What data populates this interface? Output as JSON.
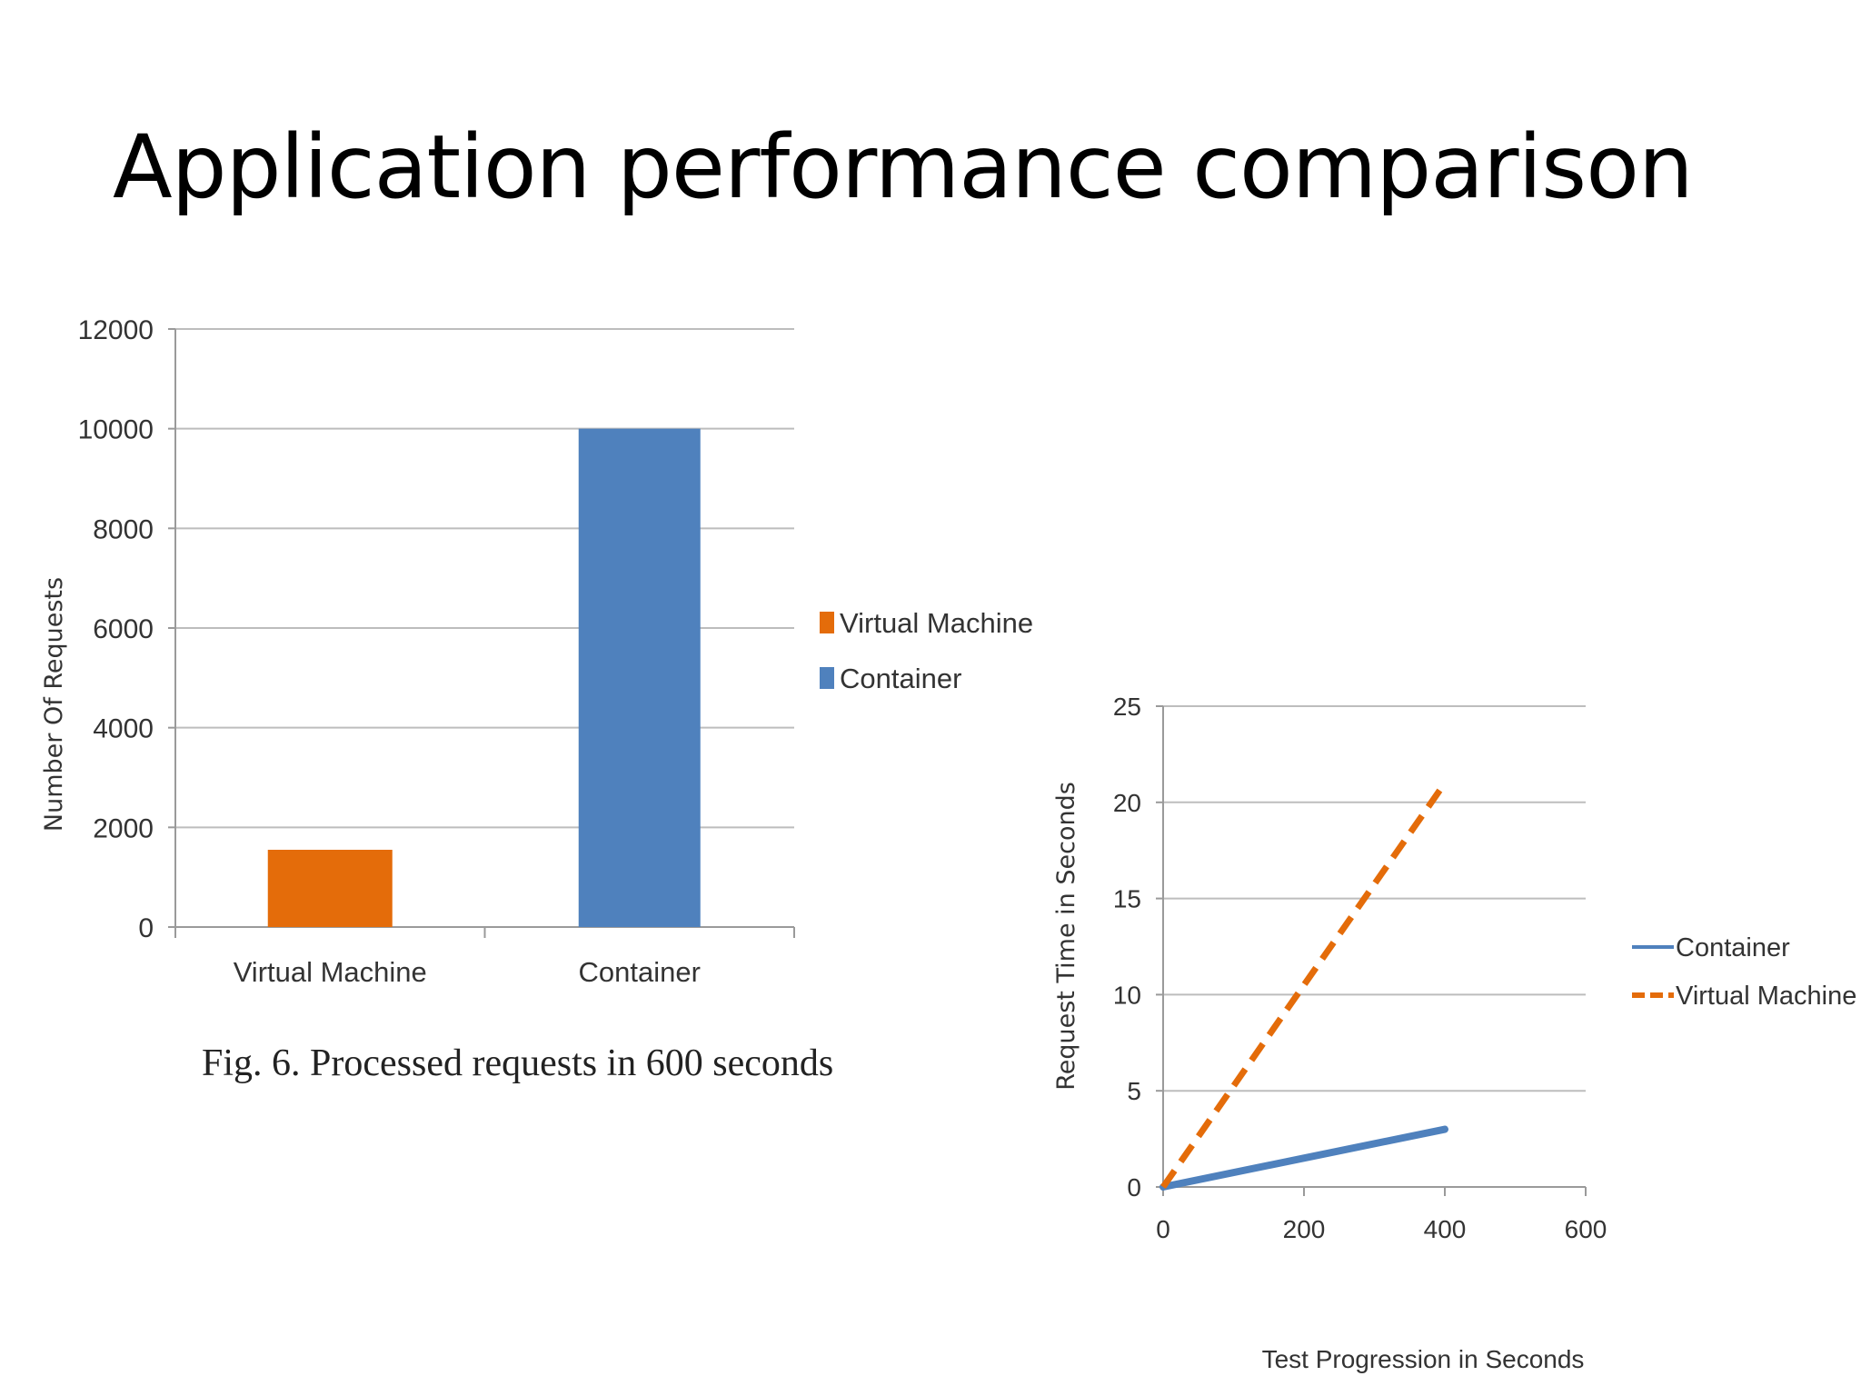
{
  "slide": {
    "title": "Application performance comparison"
  },
  "chart_data": [
    {
      "type": "bar",
      "categories": [
        "Virtual Machine",
        "Container"
      ],
      "values": [
        1550,
        10000
      ],
      "colors": [
        "#E46C0A",
        "#4F81BD"
      ],
      "ylabel": "Number Of Requests",
      "ylim": [
        0,
        12000
      ],
      "yticks": [
        0,
        2000,
        4000,
        6000,
        8000,
        10000,
        12000
      ],
      "legend": [
        {
          "name": "Virtual Machine",
          "color": "#E46C0A"
        },
        {
          "name": "Container",
          "color": "#4F81BD"
        }
      ],
      "legend_position": "right",
      "grid": true,
      "caption": "Fig. 6. Processed requests in 600 seconds"
    },
    {
      "type": "line",
      "xlabel": "Test Progression in Seconds",
      "ylabel": "Request Time in Seconds",
      "xlim": [
        0,
        600
      ],
      "ylim": [
        0,
        25
      ],
      "xticks": [
        0,
        200,
        400,
        600
      ],
      "yticks": [
        0,
        5,
        10,
        15,
        20,
        25
      ],
      "grid": true,
      "legend_position": "right",
      "series": [
        {
          "name": "Container",
          "color": "#4F81BD",
          "style": "solid",
          "x": [
            0,
            400
          ],
          "y": [
            0,
            3
          ]
        },
        {
          "name": "Virtual Machine",
          "color": "#E46C0A",
          "style": "dashed",
          "x": [
            0,
            400
          ],
          "y": [
            0,
            21
          ]
        }
      ]
    }
  ]
}
